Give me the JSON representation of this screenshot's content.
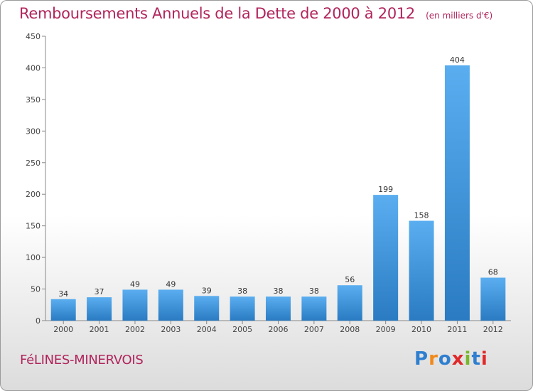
{
  "header": {
    "title": "Remboursements Annuels de la Dette de 2000 à 2012",
    "unit": "(en milliers d'€)"
  },
  "footer": {
    "commune": "FéLINES-MINERVOIS"
  },
  "logo": {
    "letters": [
      "P",
      "r",
      "o",
      "x",
      "i",
      "t",
      "i"
    ],
    "colors": [
      "#2f7fd0",
      "#f08a1c",
      "#2f7fd0",
      "#e0282a",
      "#79b72b",
      "#2f7fd0",
      "#e0282a"
    ]
  },
  "colors": {
    "bar_light": "#5aaef0",
    "bar_dark": "#2a7bc2",
    "title": "#b1245c"
  },
  "chart_data": {
    "type": "bar",
    "title": "Remboursements Annuels de la Dette de 2000 à 2012",
    "xlabel": "",
    "ylabel": "",
    "categories": [
      "2000",
      "2001",
      "2002",
      "2003",
      "2004",
      "2005",
      "2006",
      "2007",
      "2008",
      "2009",
      "2010",
      "2011",
      "2012"
    ],
    "values": [
      34,
      37,
      49,
      49,
      39,
      38,
      38,
      38,
      56,
      199,
      158,
      404,
      68
    ],
    "ylim": [
      0,
      450
    ],
    "yticks": [
      0,
      50,
      100,
      150,
      200,
      250,
      300,
      350,
      400,
      450
    ],
    "grid": false,
    "legend": "none"
  }
}
